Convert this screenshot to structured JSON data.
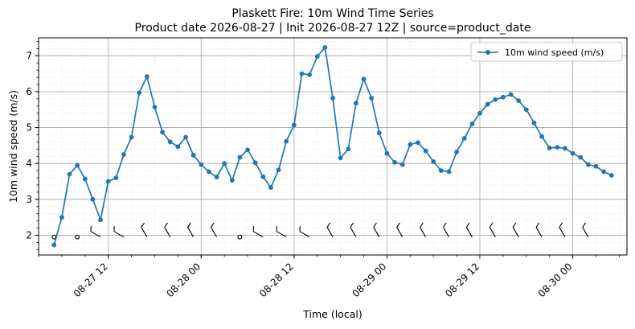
{
  "chart_data": {
    "type": "line",
    "title": "Plaskett Fire: 10m Wind Time Series",
    "subtitle": "Product date 2026-08-27 | Init 2026-08-27 12Z | source=product_date",
    "xlabel": "Time (local)",
    "ylabel": "10m wind speed (m/s)",
    "x_start": "2026-08-27 05:00",
    "x_step_hours": 1,
    "xlim": [
      "2026-08-27 03:00",
      "2026-08-30 07:00"
    ],
    "ylim": [
      1.45,
      7.5
    ],
    "yticks": [
      2,
      3,
      4,
      5,
      6,
      7
    ],
    "xticks": [
      {
        "t": "2026-08-27 12:00",
        "label": "08-27 12"
      },
      {
        "t": "2026-08-28 00:00",
        "label": "08-28 00"
      },
      {
        "t": "2026-08-28 12:00",
        "label": "08-28 12"
      },
      {
        "t": "2026-08-29 00:00",
        "label": "08-29 00"
      },
      {
        "t": "2026-08-29 12:00",
        "label": "08-29 12"
      },
      {
        "t": "2026-08-30 00:00",
        "label": "08-30 00"
      }
    ],
    "grid": true,
    "legend_position": "top-right",
    "series": [
      {
        "name": "10m wind speed (m/s)",
        "color": "#1f77b4",
        "values": [
          1.73,
          2.5,
          3.7,
          3.95,
          3.57,
          3.0,
          2.43,
          3.5,
          3.6,
          4.25,
          4.73,
          5.97,
          6.42,
          5.57,
          4.87,
          4.6,
          4.47,
          4.73,
          4.23,
          3.97,
          3.77,
          3.62,
          4.0,
          3.53,
          4.17,
          4.38,
          4.02,
          3.63,
          3.33,
          3.82,
          4.62,
          5.07,
          6.5,
          6.47,
          6.98,
          7.23,
          5.82,
          4.15,
          4.4,
          5.68,
          6.35,
          5.82,
          4.85,
          4.28,
          4.03,
          3.97,
          4.53,
          4.58,
          4.35,
          4.05,
          3.8,
          3.77,
          4.32,
          4.7,
          5.1,
          5.4,
          5.65,
          5.78,
          5.85,
          5.92,
          5.75,
          5.5,
          5.13,
          4.75,
          4.43,
          4.45,
          4.42,
          4.28,
          4.17,
          3.97,
          3.92,
          3.77,
          3.67
        ]
      }
    ],
    "wind_barbs": {
      "y": 1.95,
      "step_hours": 3,
      "directions_deg": [
        0,
        0,
        300,
        300,
        330,
        330,
        330,
        330,
        0,
        300,
        300,
        300,
        330,
        330,
        330,
        330,
        330,
        330,
        330,
        330,
        330,
        330,
        330,
        330
      ]
    }
  }
}
